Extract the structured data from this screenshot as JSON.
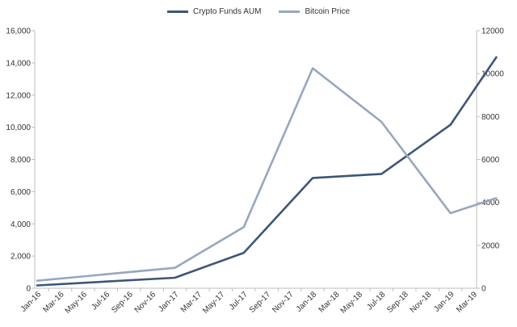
{
  "chart_data": {
    "type": "line",
    "title": "",
    "xlabel": "",
    "ylabel": "",
    "categories": [
      "Jan-16",
      "Mar-16",
      "May-16",
      "Jul-16",
      "Sep-16",
      "Nov-16",
      "Jan-17",
      "Mar-17",
      "May-17",
      "Jul-17",
      "Sep-17",
      "Nov-17",
      "Jan-18",
      "Mar-18",
      "May-18",
      "Jul-18",
      "Sep-18",
      "Nov-18",
      "Jan-19",
      "Mar-19"
    ],
    "ylim_left": [
      0,
      16000
    ],
    "ylim_right": [
      0,
      12000
    ],
    "yticks_left": [
      "0",
      "2,000",
      "4,000",
      "6,000",
      "8,000",
      "10,000",
      "12,000",
      "14,000",
      "16,000"
    ],
    "yticks_right": [
      "0",
      "2000",
      "4000",
      "6000",
      "8000",
      "10000",
      "12000"
    ],
    "legend_position": "top-center",
    "grid": false,
    "series": [
      {
        "name": "Crypto Funds AUM",
        "axis": "left",
        "color": "#3d5677",
        "points": [
          [
            0,
            175
          ],
          [
            6,
            650
          ],
          [
            9,
            2200
          ],
          [
            12,
            6850
          ],
          [
            15,
            7100
          ],
          [
            18,
            10150
          ],
          [
            20,
            14350
          ]
        ]
      },
      {
        "name": "Bitcoin Price",
        "axis": "right",
        "color": "#96a7bf",
        "points": [
          [
            0,
            350
          ],
          [
            6,
            950
          ],
          [
            9,
            2850
          ],
          [
            12,
            10250
          ],
          [
            15,
            7750
          ],
          [
            18,
            3500
          ],
          [
            20,
            4200
          ]
        ]
      }
    ]
  }
}
